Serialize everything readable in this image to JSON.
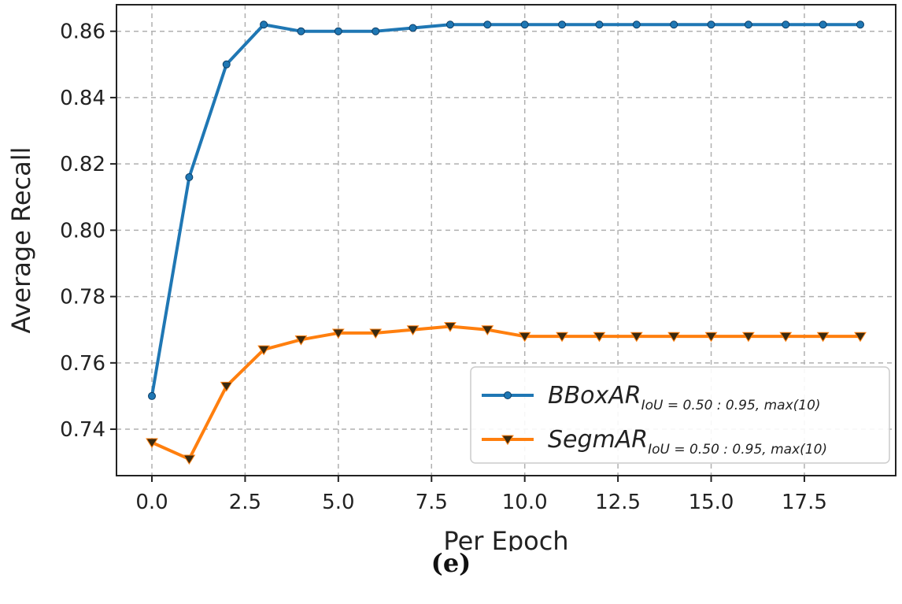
{
  "caption": "(e)",
  "chart_data": {
    "type": "line",
    "xlabel": "Per Epoch",
    "ylabel": "Average Recall",
    "xlim": [
      -0.95,
      19.95
    ],
    "ylim": [
      0.726,
      0.868
    ],
    "xticks": [
      0.0,
      2.5,
      5.0,
      7.5,
      10.0,
      12.5,
      15.0,
      17.5
    ],
    "xtick_labels": [
      "0.0",
      "2.5",
      "5.0",
      "7.5",
      "10.0",
      "12.5",
      "15.0",
      "17.5"
    ],
    "yticks": [
      0.74,
      0.76,
      0.78,
      0.8,
      0.82,
      0.84,
      0.86
    ],
    "ytick_labels": [
      "0.74",
      "0.76",
      "0.78",
      "0.80",
      "0.82",
      "0.84",
      "0.86"
    ],
    "grid": true,
    "legend_position": "lower-right",
    "x": [
      0,
      1,
      2,
      3,
      4,
      5,
      6,
      7,
      8,
      9,
      10,
      11,
      12,
      13,
      14,
      15,
      16,
      17,
      18,
      19
    ],
    "series": [
      {
        "name_main": "BBoxAR",
        "name_sub": "IoU = 0.50 : 0.95, max(10)",
        "color": "#1f77b4",
        "marker": "circle",
        "values": [
          0.75,
          0.816,
          0.85,
          0.862,
          0.86,
          0.86,
          0.86,
          0.861,
          0.862,
          0.862,
          0.862,
          0.862,
          0.862,
          0.862,
          0.862,
          0.862,
          0.862,
          0.862,
          0.862,
          0.862
        ]
      },
      {
        "name_main": "SegmAR",
        "name_sub": "IoU = 0.50 : 0.95, max(10)",
        "color": "#ff7f0e",
        "marker": "triangle-down",
        "values": [
          0.736,
          0.731,
          0.753,
          0.764,
          0.767,
          0.769,
          0.769,
          0.77,
          0.771,
          0.77,
          0.768,
          0.768,
          0.768,
          0.768,
          0.768,
          0.768,
          0.768,
          0.768,
          0.768,
          0.768
        ]
      }
    ]
  }
}
